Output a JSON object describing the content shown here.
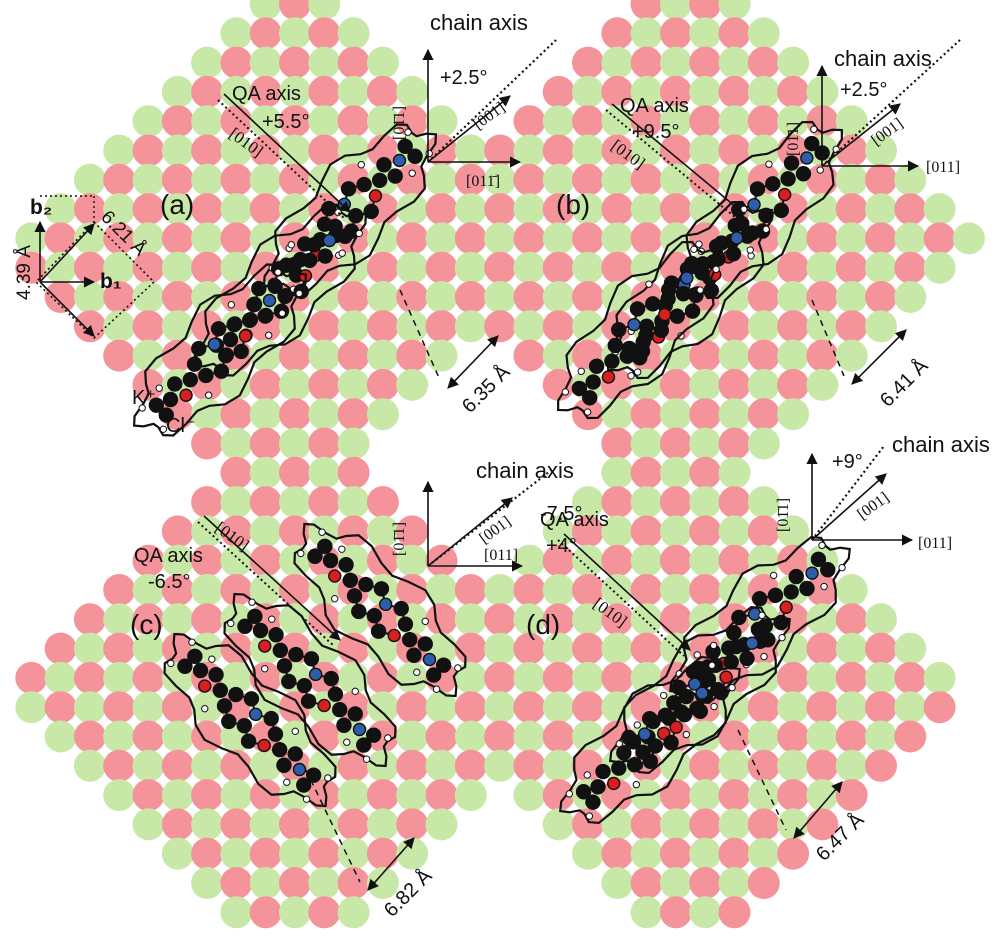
{
  "lattice": {
    "k_color": "#f4949a",
    "cl_color": "#c8e8a8",
    "k_label": "K⁺",
    "cl_label": "Cl⁻"
  },
  "molecule": {
    "carbon_color": "#111111",
    "nitrogen_color": "#2e5eaa",
    "oxygen_color": "#d71f1f",
    "hydrogen_color": "#ffffff"
  },
  "unit_cell": {
    "b1": "b₁",
    "b2": "b₂",
    "a_label": "4.39 Å",
    "diag_label": "6.21 Å"
  },
  "panels": [
    {
      "id": "a",
      "label": "(a)",
      "qa_axis": "QA axis",
      "qa_angle": "+5.5°",
      "dir_010": "[010]",
      "chain_axis": "chain axis",
      "chain_angle": "+2.5°",
      "dir_0m11": "[01̄1]",
      "dir_001": "[001]",
      "dir_011": "[011̄]",
      "spacing": "6.35 Å"
    },
    {
      "id": "b",
      "label": "(b)",
      "qa_axis": "QA axis",
      "qa_angle": "+9.5°",
      "dir_010": "[010]",
      "chain_axis": "chain axis",
      "chain_angle": "+2.5°",
      "dir_0m11": "[01̄1]",
      "dir_001": "[001]",
      "dir_011": "[011]",
      "spacing": "6.41 Å"
    },
    {
      "id": "c",
      "label": "(c)",
      "qa_axis": "QA axis",
      "qa_angle": "-6.5°",
      "dir_010": "[010]",
      "chain_axis": "chain axis",
      "chain_angle": "-7.5°",
      "dir_0m11": "[01̄1]",
      "dir_001": "[001]",
      "dir_011": "[011]",
      "spacing": "6.82 Å"
    },
    {
      "id": "d",
      "label": "(d)",
      "qa_axis": "QA axis",
      "qa_angle": "+4°",
      "dir_010": "[010]",
      "chain_axis": "chain axis",
      "chain_angle": "+9°",
      "dir_0m11": "[01̄1]",
      "dir_001": "[001]",
      "dir_011": "[011]",
      "spacing": "6.47 Å"
    }
  ]
}
